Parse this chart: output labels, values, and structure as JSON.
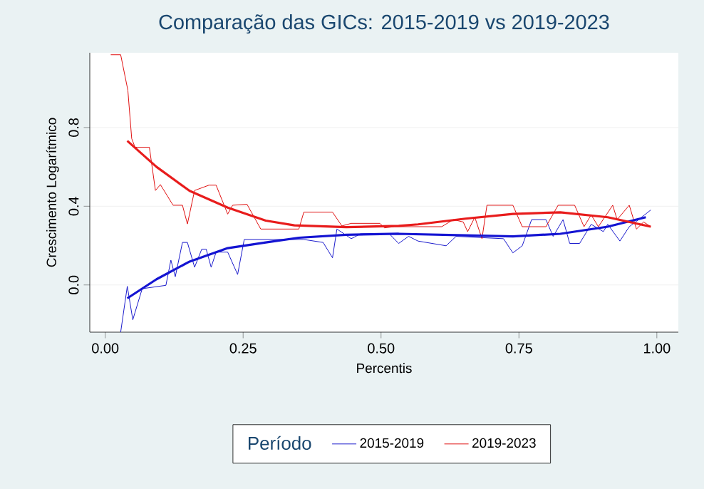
{
  "chart_data": {
    "type": "line",
    "title": "Comparação das GICs: 2015-2019 vs 2019-2023",
    "xlabel": "Percentis",
    "ylabel": "Crescimento Logarítmico",
    "legend_title": "Período",
    "xlim": [
      -0.028,
      1.039
    ],
    "ylim": [
      -0.24,
      1.18
    ],
    "xticks": [
      {
        "value": 0,
        "label": "0.00"
      },
      {
        "value": 0.25,
        "label": "0.25"
      },
      {
        "value": 0.5,
        "label": "0.50"
      },
      {
        "value": 0.75,
        "label": "0.75"
      },
      {
        "value": 1,
        "label": "1.00"
      }
    ],
    "yticks": [
      {
        "value": 0,
        "label": "0.0"
      },
      {
        "value": 0.4,
        "label": "0.4"
      },
      {
        "value": 0.8,
        "label": "0.8"
      }
    ],
    "grid": "y",
    "legend": "bottom",
    "marker": "none",
    "series": [
      {
        "name": "2015-2019",
        "color": "#1a1acc",
        "x": [
          0.028,
          0.04,
          0.05,
          0.067,
          0.11,
          0.119,
          0.127,
          0.14,
          0.149,
          0.162,
          0.175,
          0.183,
          0.192,
          0.201,
          0.222,
          0.24,
          0.252,
          0.36,
          0.395,
          0.412,
          0.42,
          0.446,
          0.463,
          0.515,
          0.532,
          0.55,
          0.567,
          0.618,
          0.636,
          0.722,
          0.739,
          0.756,
          0.773,
          0.799,
          0.812,
          0.83,
          0.842,
          0.86,
          0.881,
          0.903,
          0.911,
          0.933,
          0.95,
          0.967,
          0.989
        ],
        "values": [
          -0.24,
          -0.007,
          -0.177,
          -0.019,
          -0.002,
          0.126,
          0.042,
          0.216,
          0.216,
          0.09,
          0.182,
          0.182,
          0.09,
          0.167,
          0.167,
          0.053,
          0.231,
          0.231,
          0.216,
          0.138,
          0.284,
          0.235,
          0.26,
          0.26,
          0.211,
          0.247,
          0.223,
          0.199,
          0.247,
          0.235,
          0.163,
          0.199,
          0.332,
          0.332,
          0.247,
          0.332,
          0.211,
          0.211,
          0.308,
          0.271,
          0.308,
          0.223,
          0.296,
          0.332,
          0.381
        ]
      },
      {
        "name": "2019-2023",
        "color": "#e01010",
        "x": [
          0.01,
          0.028,
          0.041,
          0.048,
          0.054,
          0.08,
          0.091,
          0.1,
          0.123,
          0.14,
          0.149,
          0.162,
          0.188,
          0.201,
          0.222,
          0.231,
          0.257,
          0.282,
          0.351,
          0.36,
          0.412,
          0.429,
          0.446,
          0.498,
          0.506,
          0.524,
          0.61,
          0.631,
          0.649,
          0.657,
          0.67,
          0.683,
          0.692,
          0.739,
          0.756,
          0.799,
          0.821,
          0.851,
          0.868,
          0.881,
          0.894,
          0.92,
          0.928,
          0.95,
          0.963,
          0.976,
          0.989
        ],
        "values": [
          1.17,
          1.17,
          0.99,
          0.744,
          0.7,
          0.7,
          0.48,
          0.51,
          0.405,
          0.405,
          0.31,
          0.48,
          0.507,
          0.507,
          0.36,
          0.405,
          0.41,
          0.284,
          0.284,
          0.37,
          0.37,
          0.3,
          0.313,
          0.313,
          0.29,
          0.296,
          0.296,
          0.332,
          0.32,
          0.271,
          0.344,
          0.235,
          0.405,
          0.405,
          0.296,
          0.296,
          0.405,
          0.405,
          0.296,
          0.356,
          0.296,
          0.405,
          0.332,
          0.405,
          0.284,
          0.32,
          0.296
        ]
      },
      {
        "color": "#1414d2",
        "x": [
          0.04,
          0.093,
          0.153,
          0.222,
          0.291,
          0.351,
          0.437,
          0.532,
          0.653,
          0.739,
          0.825,
          0.911,
          0.98
        ],
        "values": [
          -0.068,
          0.029,
          0.119,
          0.187,
          0.216,
          0.24,
          0.255,
          0.26,
          0.252,
          0.247,
          0.26,
          0.296,
          0.344
        ]
      },
      {
        "color": "#e81c1c",
        "x": [
          0.04,
          0.093,
          0.153,
          0.222,
          0.291,
          0.343,
          0.437,
          0.532,
          0.567,
          0.653,
          0.739,
          0.825,
          0.911,
          0.989
        ],
        "values": [
          0.732,
          0.6,
          0.478,
          0.393,
          0.327,
          0.303,
          0.294,
          0.3,
          0.308,
          0.337,
          0.361,
          0.369,
          0.344,
          0.296
        ]
      }
    ]
  }
}
